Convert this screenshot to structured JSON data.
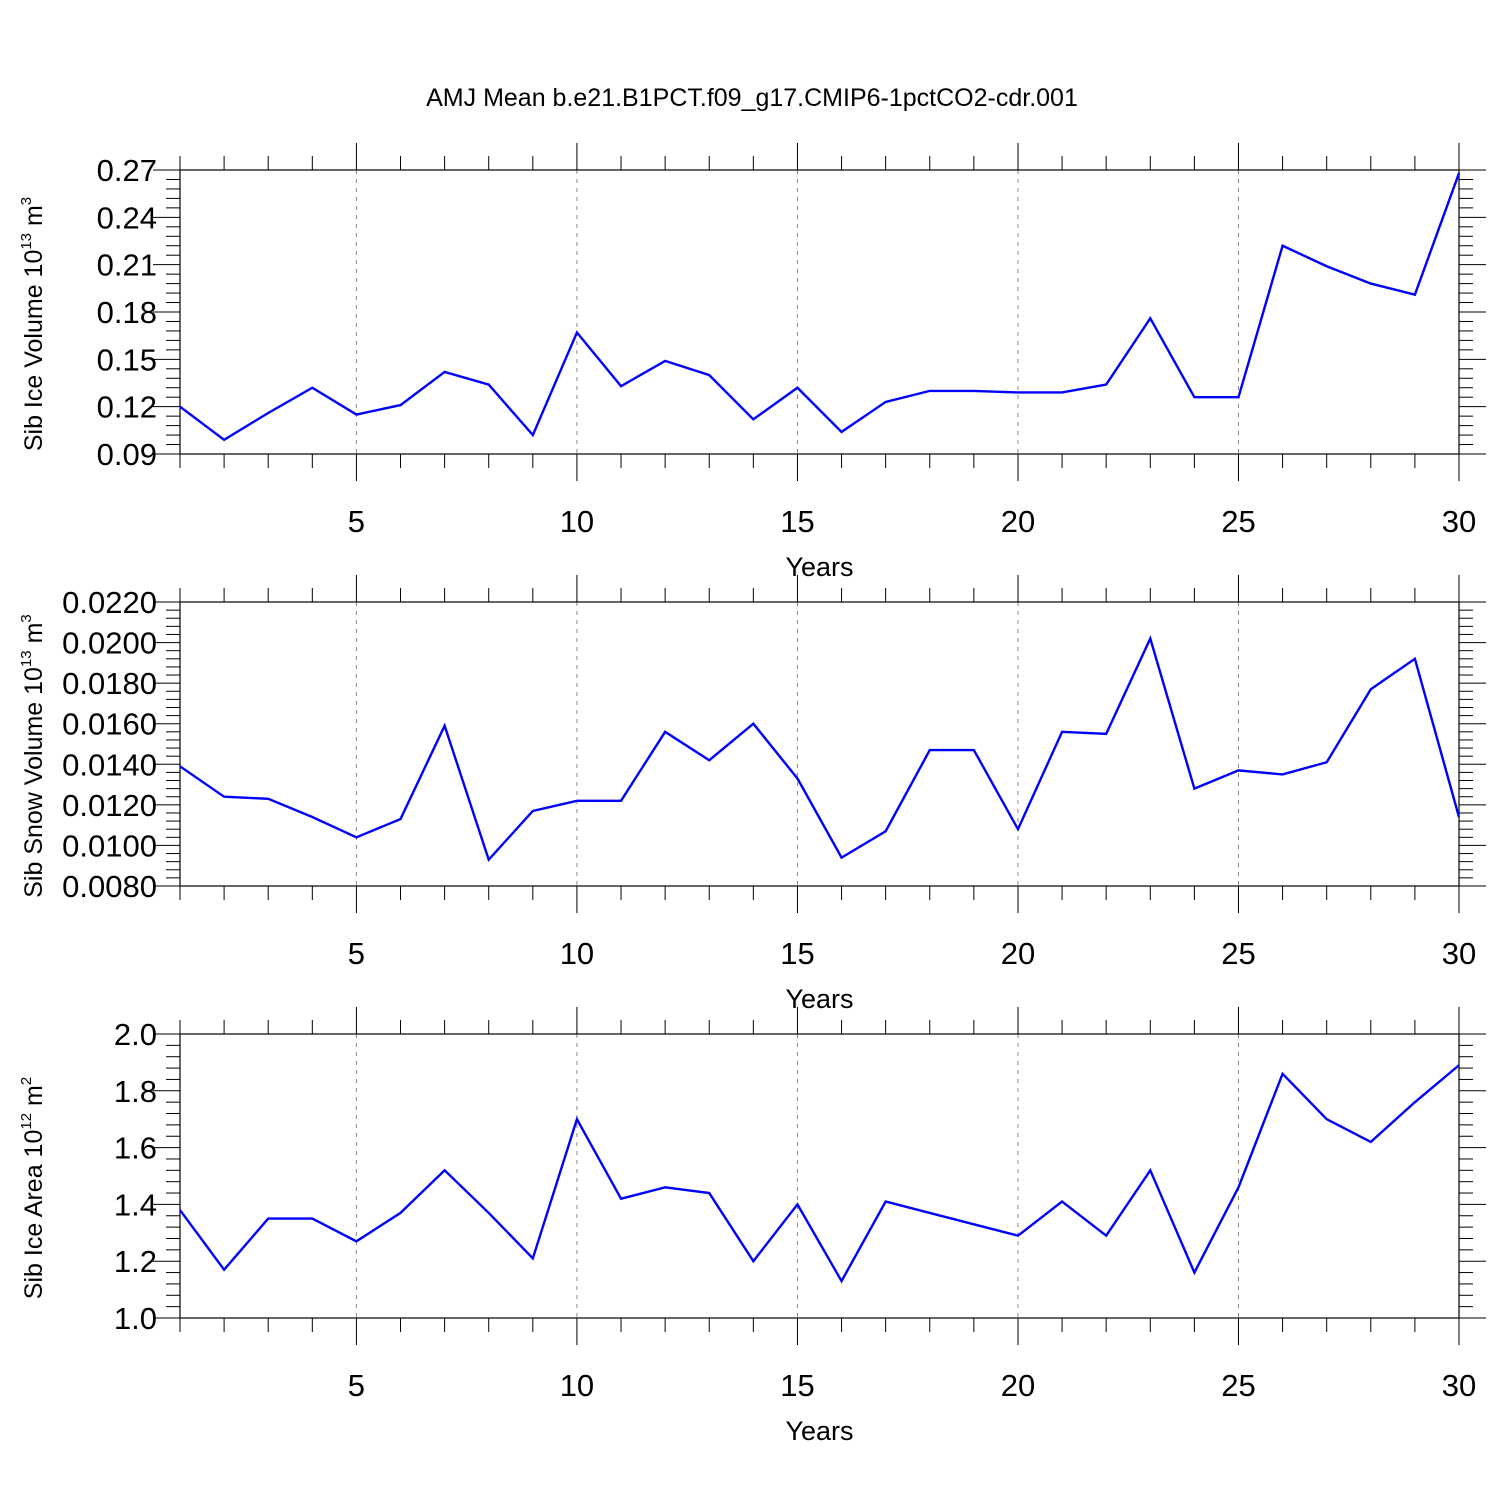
{
  "title": "AMJ Mean b.e21.B1PCT.f09_g17.CMIP6-1pctCO2-cdr.001",
  "colors": {
    "line": "#0000ff",
    "frame": "#000000",
    "grid": "#888888"
  },
  "chart_data": [
    {
      "type": "line",
      "ylabel": {
        "text": "Sib Ice Volume 10",
        "exp": "13",
        "unit": " m",
        "unit_exp": "3"
      },
      "xlabel": "Years",
      "xlim": [
        1,
        30
      ],
      "ylim": [
        0.09,
        0.27
      ],
      "x_ticks": [
        5,
        10,
        15,
        20,
        25,
        30
      ],
      "y_ticks": [
        "0.09",
        "0.12",
        "0.15",
        "0.18",
        "0.21",
        "0.24",
        "0.27"
      ],
      "grid": "vertical dashed at major x ticks",
      "series": [
        {
          "x": [
            1,
            2,
            3,
            4,
            5,
            6,
            7,
            8,
            9,
            10,
            11,
            12,
            13,
            14,
            15,
            16,
            17,
            18,
            19,
            20,
            21,
            22,
            23,
            24,
            25,
            26,
            27,
            28,
            29,
            30
          ],
          "values": [
            0.12,
            0.099,
            0.116,
            0.132,
            0.115,
            0.121,
            0.142,
            0.134,
            0.102,
            0.167,
            0.133,
            0.149,
            0.14,
            0.112,
            0.132,
            0.104,
            0.123,
            0.13,
            0.13,
            0.129,
            0.129,
            0.134,
            0.176,
            0.126,
            0.126,
            0.222,
            0.209,
            0.198,
            0.191,
            0.268
          ]
        }
      ]
    },
    {
      "type": "line",
      "ylabel": {
        "text": "Sib Snow Volume 10",
        "exp": "13",
        "unit": " m",
        "unit_exp": "3"
      },
      "xlabel": "Years",
      "xlim": [
        1,
        30
      ],
      "ylim": [
        0.008,
        0.022
      ],
      "x_ticks": [
        5,
        10,
        15,
        20,
        25,
        30
      ],
      "y_ticks": [
        "0.0080",
        "0.0100",
        "0.0120",
        "0.0140",
        "0.0160",
        "0.0180",
        "0.0200",
        "0.0220"
      ],
      "grid": "vertical dashed at major x ticks",
      "series": [
        {
          "x": [
            1,
            2,
            3,
            4,
            5,
            6,
            7,
            8,
            9,
            10,
            11,
            12,
            13,
            14,
            15,
            16,
            17,
            18,
            19,
            20,
            21,
            22,
            23,
            24,
            25,
            26,
            27,
            28,
            29,
            30
          ],
          "values": [
            0.0139,
            0.0124,
            0.0123,
            0.0114,
            0.0104,
            0.0113,
            0.0159,
            0.0093,
            0.0117,
            0.0122,
            0.0122,
            0.0156,
            0.0142,
            0.016,
            0.0133,
            0.0094,
            0.0107,
            0.0147,
            0.0147,
            0.0108,
            0.0156,
            0.0155,
            0.0202,
            0.0128,
            0.0137,
            0.0135,
            0.0141,
            0.0177,
            0.0192,
            0.0114
          ]
        }
      ]
    },
    {
      "type": "line",
      "ylabel": {
        "text": "Sib Ice Area 10",
        "exp": "12",
        "unit": " m",
        "unit_exp": "2"
      },
      "xlabel": "Years",
      "xlim": [
        1,
        30
      ],
      "ylim": [
        1.0,
        2.0
      ],
      "x_ticks": [
        5,
        10,
        15,
        20,
        25,
        30
      ],
      "y_ticks": [
        "1.0",
        "1.2",
        "1.4",
        "1.6",
        "1.8",
        "2.0"
      ],
      "grid": "vertical dashed at major x ticks",
      "series": [
        {
          "x": [
            1,
            2,
            3,
            4,
            5,
            6,
            7,
            8,
            9,
            10,
            11,
            12,
            13,
            14,
            15,
            16,
            17,
            18,
            19,
            20,
            21,
            22,
            23,
            24,
            25,
            26,
            27,
            28,
            29,
            30
          ],
          "values": [
            1.38,
            1.17,
            1.35,
            1.35,
            1.27,
            1.37,
            1.52,
            1.37,
            1.21,
            1.7,
            1.42,
            1.46,
            1.44,
            1.2,
            1.4,
            1.13,
            1.41,
            1.37,
            1.33,
            1.29,
            1.41,
            1.29,
            1.52,
            1.16,
            1.46,
            1.86,
            1.7,
            1.62,
            1.76,
            1.89
          ]
        }
      ]
    }
  ]
}
